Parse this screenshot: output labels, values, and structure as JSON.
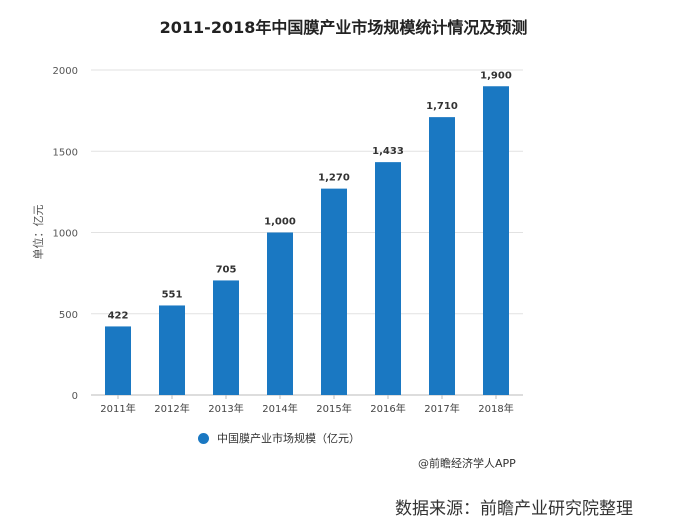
{
  "chart_data": {
    "type": "bar",
    "title": "2011-2018年中国膜产业市场规模统计情况及预测",
    "ylabel": "单位：亿元",
    "xlabel": "",
    "categories": [
      "2011年",
      "2012年",
      "2013年",
      "2014年",
      "2015年",
      "2016年",
      "2017年",
      "2018年"
    ],
    "series": [
      {
        "name": "中国膜产业市场规模（亿元）",
        "values": [
          422,
          551,
          705,
          1000,
          1270,
          1433,
          1710,
          1900
        ]
      }
    ],
    "data_labels": [
      "422",
      "551",
      "705",
      "1,000",
      "1,270",
      "1,433",
      "1,710",
      "1,900"
    ],
    "yticks": [
      0,
      500,
      1000,
      1500,
      2000
    ],
    "ylim": [
      0,
      2000
    ],
    "grid": true,
    "legend": "bottom",
    "bar_color": "#1a78c2"
  },
  "credit": "@前瞻经济学人APP",
  "source": "数据来源：前瞻产业研究院整理"
}
